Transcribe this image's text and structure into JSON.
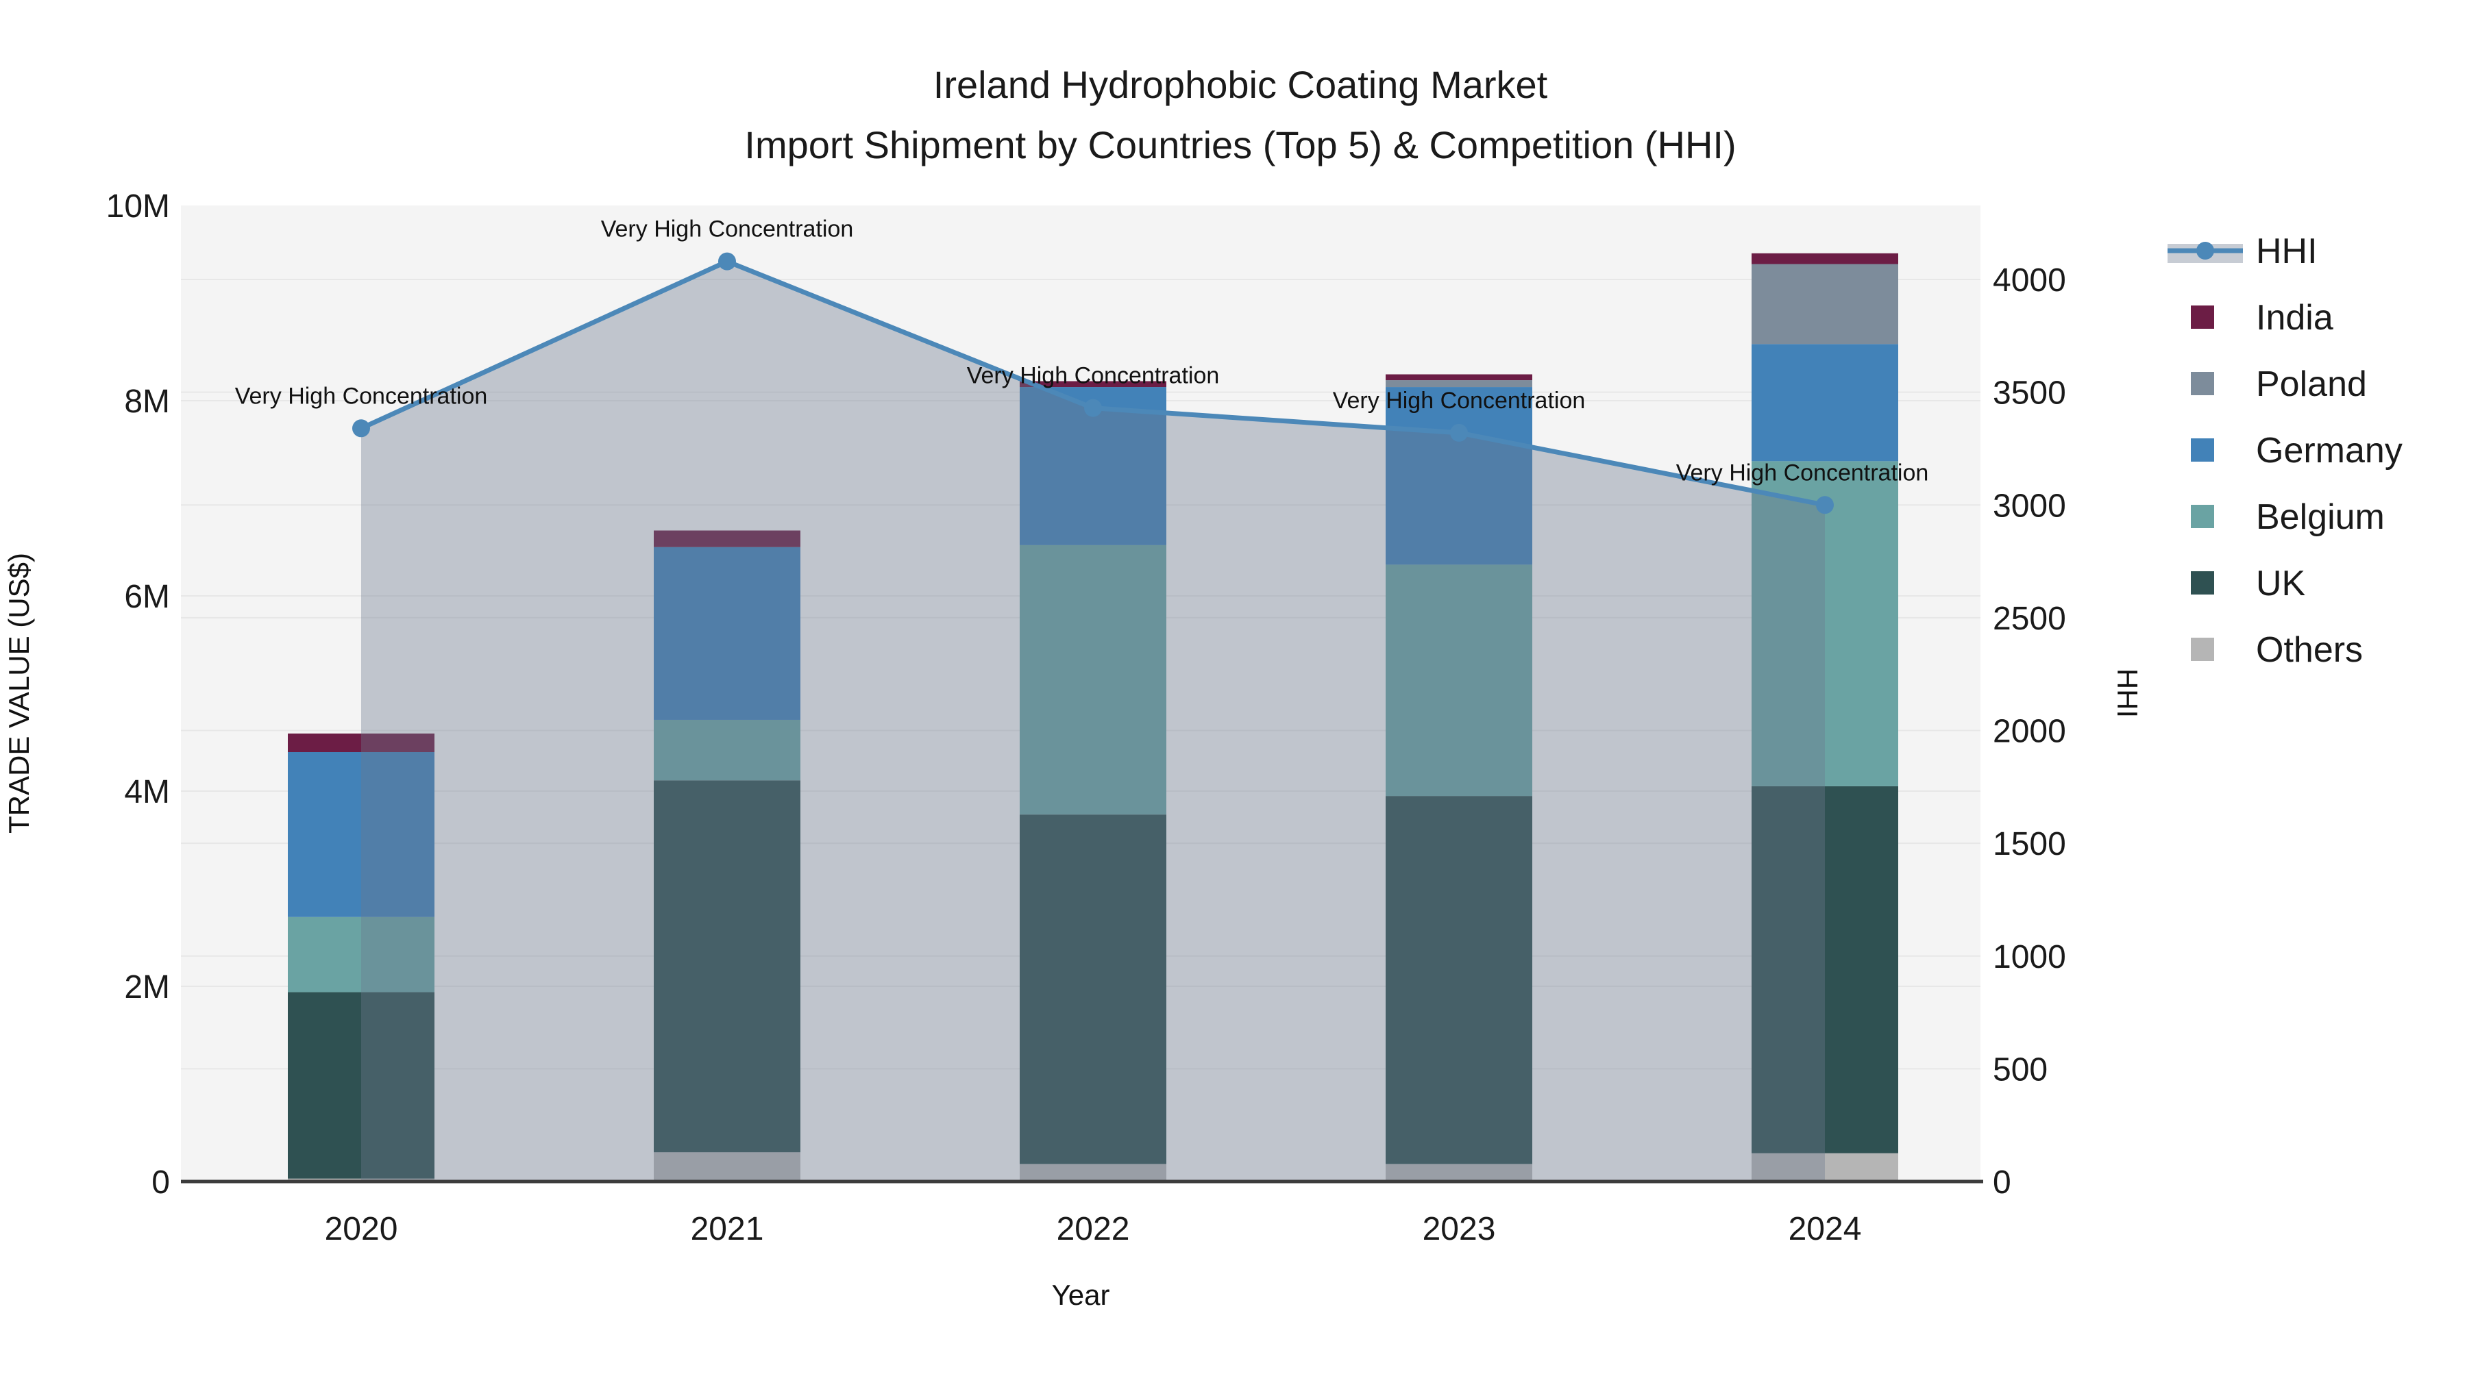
{
  "title": {
    "line1": "Ireland Hydrophobic Coating Market",
    "line2": "Import Shipment by Countries (Top 5) & Competition (HHI)"
  },
  "axes": {
    "x_label": "Year",
    "y_left_label": "TRADE VALUE (US$)",
    "y_right_label": "HHI",
    "y_left_ticks": [
      {
        "label": "0",
        "value": 0
      },
      {
        "label": "2M",
        "value": 2
      },
      {
        "label": "4M",
        "value": 4
      },
      {
        "label": "6M",
        "value": 6
      },
      {
        "label": "8M",
        "value": 8
      },
      {
        "label": "10M",
        "value": 10
      }
    ],
    "y_left_max": 10,
    "y_right_ticks": [
      {
        "label": "0",
        "value": 0
      },
      {
        "label": "500",
        "value": 500
      },
      {
        "label": "1000",
        "value": 1000
      },
      {
        "label": "1500",
        "value": 1500
      },
      {
        "label": "2000",
        "value": 2000
      },
      {
        "label": "2500",
        "value": 2500
      },
      {
        "label": "3000",
        "value": 3000
      },
      {
        "label": "3500",
        "value": 3500
      },
      {
        "label": "4000",
        "value": 4000
      }
    ],
    "y_right_max": 4000
  },
  "chart_data": {
    "type": "bar",
    "subtype": "stacked-bars-with-line-area",
    "categories": [
      "2020",
      "2021",
      "2022",
      "2023",
      "2024"
    ],
    "value_unit": "Million US$ (trade value, left axis)",
    "series": [
      {
        "name": "Others",
        "color": "#B5B5B5",
        "values": [
          0.03,
          0.3,
          0.18,
          0.18,
          0.29
        ]
      },
      {
        "name": "UK",
        "color": "#2F5152",
        "values": [
          1.91,
          3.81,
          3.58,
          3.77,
          3.76
        ]
      },
      {
        "name": "Belgium",
        "color": "#6AA3A3",
        "values": [
          0.77,
          0.62,
          2.76,
          2.37,
          3.33
        ]
      },
      {
        "name": "Germany",
        "color": "#4282B8",
        "values": [
          1.69,
          1.77,
          1.62,
          1.82,
          1.2
        ]
      },
      {
        "name": "Poland",
        "color": "#7D8C9B",
        "values": [
          0.0,
          0.0,
          0.0,
          0.07,
          0.82
        ]
      },
      {
        "name": "India",
        "color": "#6C1D45",
        "values": [
          0.19,
          0.17,
          0.06,
          0.06,
          0.11
        ]
      }
    ],
    "bar_totals": [
      4.59,
      6.67,
      8.2,
      8.27,
      9.51
    ],
    "line": {
      "name": "HHI",
      "axis": "right",
      "color": "#4C88B8",
      "area_fill": "rgba(108,122,143,0.38)",
      "values": [
        3340,
        4080,
        3430,
        3320,
        3000
      ]
    },
    "annotations": [
      {
        "text": "Very High Concentration",
        "category": "2020"
      },
      {
        "text": "Very High Concentration",
        "category": "2021"
      },
      {
        "text": "Very High Concentration",
        "category": "2022"
      },
      {
        "text": "Very High Concentration",
        "category": "2023"
      },
      {
        "text": "Very High Concentration",
        "category": "2024"
      }
    ],
    "ylabel": "TRADE VALUE (US$)",
    "ylabel_right": "HHI",
    "xlabel": "Year",
    "ylim_left": [
      0,
      10
    ],
    "ylim_right_ticks": [
      0,
      4000
    ],
    "grid": true,
    "legend_position": "right"
  },
  "legend": {
    "items": [
      {
        "label": "HHI",
        "swatch": "line",
        "color": "#4C88B8"
      },
      {
        "label": "India",
        "swatch": "rect",
        "color": "#6C1D45"
      },
      {
        "label": "Poland",
        "swatch": "rect",
        "color": "#7D8C9B"
      },
      {
        "label": "Germany",
        "swatch": "rect",
        "color": "#4282B8"
      },
      {
        "label": "Belgium",
        "swatch": "rect",
        "color": "#6AA3A3"
      },
      {
        "label": "UK",
        "swatch": "rect",
        "color": "#2F5152"
      },
      {
        "label": "Others",
        "swatch": "rect",
        "color": "#B5B5B5"
      }
    ]
  },
  "colors": {
    "plot_bg": "#f4f4f4",
    "figure_bg": "#ffffff",
    "gridline": "#e7e7e7",
    "axis_line": "#3c3c3c",
    "hhi_line": "#4C88B8",
    "area_fill": "rgba(108,122,143,0.38)"
  }
}
